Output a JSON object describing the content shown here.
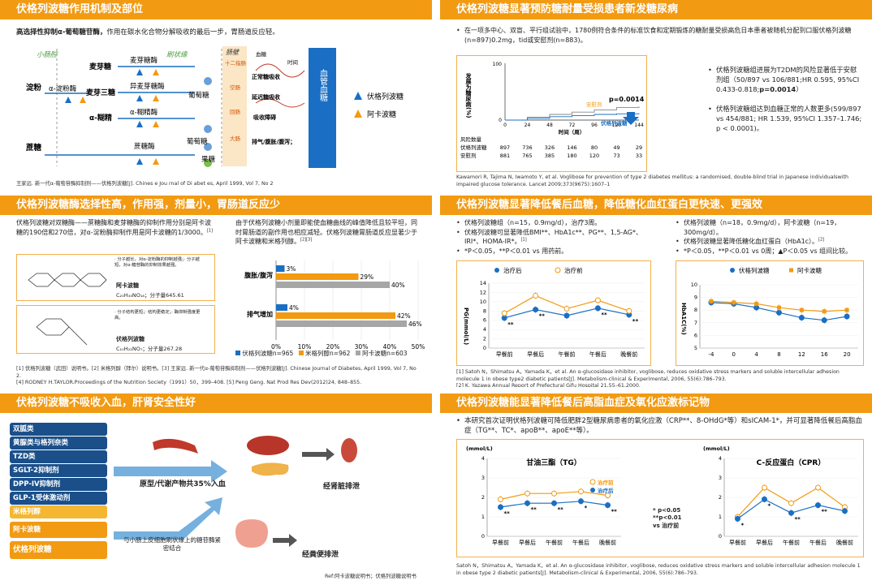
{
  "s1": {
    "title": "伏格列波糖作用机制及部位",
    "intro_bold": "高选择性抑制α-葡萄糖苷酶，",
    "intro": "作用在碳水化合物分解吸收的最后一步，胃肠道反应轻。",
    "col_small": "小肠腔",
    "col_brush": "刷状缘",
    "col_cell": "肠壁",
    "starch": "淀粉",
    "sucrose": "蔗糖",
    "amylase": "α-淀粉酶",
    "maltose": "麦芽糖",
    "maltotriose": "麦芽三糖",
    "dextrin": "α-糊精",
    "e_maltase": "麦芽糖酶",
    "e_isomaltase": "异麦芽糖酶",
    "e_dextrinase": "α-糊精酶",
    "e_sucrase": "蔗糖酶",
    "glucose": "葡萄糖",
    "glucose2": "葡萄糖",
    "fructose": "果糖",
    "g_duo": "十二指肠",
    "g_jej": "空肠",
    "g_ile": "回肠",
    "g_col": "大肠",
    "blood_lbl": "血糖",
    "time_lbl": "时间",
    "abs_normal": "正常糖吸收",
    "abs_delay": "延迟糖吸收",
    "abs_block": "吸收障碍",
    "excrete": "排气/腹胀/腹泻；",
    "vessel": "血管血糖",
    "leg_vog": "伏格列波糖",
    "leg_aca": "阿卡波糖",
    "ref": "王家远. 新一代α-葡萄苷酶抑制剂——伏格列波糖[J]. Chines e Jou rnal of Di abet es, April 1999, Vol 7, No 2"
  },
  "s2": {
    "title": "伏格列波糖显著预防糖耐量受损患者新发糖尿病",
    "bullet": "在一项多中心、双盲、平行组试验中，1780例符合条件的标准饮食和定期锻炼的糖耐量受损高危日本患者被随机分配到口服伏格列波糖(n=897)0.2mg，tid或安慰剂(n=883)。",
    "ylabel": "发展为糖尿病(%)",
    "xlabel": "时间（周）",
    "pval": "p=0.0014",
    "lbl_placebo": "安慰剂",
    "lbl_vog": "伏格列波糖",
    "risk_hdr": "风险数量",
    "risk_rows": [
      {
        "name": "伏格列波糖",
        "vals": [
          "897",
          "736",
          "326",
          "146",
          "80",
          "49",
          "29"
        ]
      },
      {
        "name": "安慰剂",
        "vals": [
          "881",
          "765",
          "385",
          "180",
          "120",
          "73",
          "33"
        ]
      }
    ],
    "b1": "伏格列波糖组进展为T2DM的风险显著低于安慰剂组（50/897 vs 106/881;HR 0.595, 95%CI 0.433-0.818;",
    "b1_bold": "p=0.0014",
    "b1_end": "）",
    "b2": "伏格列波糖组达到血糖正常的人数更多(599/897 vs 454/881; HR 1.539, 95%CI 1.357–1.746; p < 0.0001)。",
    "ref": "Kawamori R, Tajima N, Iwamoto Y, et al. Voglibose for prevention of type 2 diabetes mellitus: a randomised, double-blind trial in Japanese individualswith impaired glucose tolerance. Lancet 2009;373(9675):1607–1"
  },
  "s3": {
    "title": "伏格列波糖酶选择性高，作用强，剂量小，胃肠道反应少",
    "p1": "伏格列波糖对双糖酶——蔗糖酶和麦芽糖酶的抑制作用分别是阿卡波糖的190倍和270倍，对α-淀粉酶抑制作用是阿卡波糖的1/3000。",
    "p1_sup": "[1]",
    "p2": "由于伏格列波糖小剂量即能使血糖曲线的峰值降低且较平坦，同时胃肠道的副作用也相应减轻。伏格列波糖胃肠道反应显著少于阿卡波糖和米格列醇。",
    "p2_sup": "[2][3]",
    "aca_notes": "· 分子越长，对α-淀粉酶的抑制越强；· 分子越短，对α-糖苷酶的抑制效果越强。",
    "aca_name": "阿卡波糖",
    "aca_formula": "C₂₅H₄₃NO₁₈；分子量645.61",
    "vog_notes": "· 分子结构更短；· 结构更稳定；· 酶抑制强度更高。",
    "vog_name": "伏格列波糖",
    "vog_formula": "C₁₀H₂₁NO₇；分子量267.28",
    "ref": "[1] 伏格列波糖（武田）说明书。[2] 米格列醇（拜尔）说明书。[3] 王家远. 新一代α-葡萄苷酶抑制剂——伏格列波糖[J]. Chinese Journal of Diabetes, April 1999, Vol 7, No 2.\n[4] RODNEY H.TAYLOR.Proceedings of the Nutrition Society（1991）50，399–408.  [5] Peng Geng. Nat Prod Res Dev(2012)24, 848–855."
  },
  "s4": {
    "title": "伏格列波糖显著降低餐后血糖，降低糖化血红蛋白更快速、更强效",
    "l1": "伏格列波糖组（n=15，0.9mg/d），治疗3周。",
    "l2": "伏格列波糖可显著降低BMI**、HbA1c**、PG**、1,5-AG*、IRI*、HOMA-IR*。",
    "l2_sup": "[1]",
    "l3": "*P＜0.05，**P＜0.01 vs 用药前。",
    "r1": "伏格列波糖（n=18，0.9mg/d），阿卡波糖（n=19，300mg/d）。",
    "r2": "伏格列波糖显著降低糖化血红蛋白（HbA1c）。",
    "r2_sup": "[2]",
    "r3": "*P＜0.05，**P＜0.01 vs 0周；▲P＜0.05 vs 组间比较。",
    "ref": "[1] Satoh N，Shimatsu A，Yamada K，et al. An α-glucosidase inhibitor, voglibose, reduces oxidative stress markers and soluble intercellular adhesion molecule 1 in obese type2 diabetic patients[J]. Metabolism-clinical & Experimental, 2006, 55(6):786–793.\n[2] K. Yazawa Annual Report of Prefectural Gifu Hospital 21,55–61,2000."
  },
  "s5": {
    "title": "伏格列波糖不吸收入血，肝肾安全性好",
    "drugs": [
      "双胍类",
      "黄脲类与格列奈类",
      "TZD类",
      "SGLT-2抑制剂",
      "DPP-IV抑制剂",
      "GLP-1受体激动剂",
      "米格列醇",
      "阿卡波糖",
      "伏格列波糖"
    ],
    "proto": "原型/代谢产物共35%入血",
    "kidney": "经肾脏排泄",
    "mucosa": "与小肠上皮细胞刷状缘上的糖苷酶紧密结合",
    "feces": "经粪便排泄",
    "ref": "Ref:阿卡波糖说明书；伏格列波糖说明书"
  },
  "s6": {
    "title": "伏格列波糖能显著降低餐后高脂血症及氧化应激标记物",
    "bullet": "本研究首次证明伏格列波糖可降低肥胖2型糖尿病患者的氧化应激（CRP**、8-OHdG*等）和sICAM-1*，并可显著降低餐后高脂血症（TG**、TC*、apoB**、apoE**等）。",
    "sig": [
      "* p<0.05",
      "**p<0.01",
      "vs 治疗前"
    ],
    "ref": "Satoh N，Shimatsu A，Yamada K，et al. An α-glucosidase inhibitor, voglibose, reduces oxidative stress markers and soluble intercellular adhesion molecule 1 in obese type 2 diabetic patients[J]. Metabolism-clinical & Experimental, 2006, 55(6):786–793."
  },
  "colors": {
    "orange": "#f29a12",
    "blue": "#1a6fc4",
    "gray": "#a6a6a6",
    "green": "#4a9a3a"
  },
  "chart_data": [
    {
      "type": "line",
      "title": "",
      "xlabel": "时间（周）",
      "ylabel": "发展为糖尿病(%)",
      "x": [
        0,
        24,
        48,
        72,
        96,
        120,
        144
      ],
      "xlim": [
        0,
        144
      ],
      "ylim": [
        0,
        100
      ],
      "series": [
        {
          "name": "安慰剂",
          "values": [
            0,
            5,
            10,
            14,
            18,
            22,
            24
          ]
        },
        {
          "name": "伏格列波糖",
          "values": [
            0,
            3,
            6,
            8,
            10,
            11,
            12
          ]
        }
      ]
    },
    {
      "type": "bar",
      "orientation": "horizontal",
      "categories": [
        "腹胀/腹泻",
        "排气增加"
      ],
      "xlim": [
        0,
        50
      ],
      "xticks": [
        "0%",
        "10%",
        "20%",
        "30%",
        "40%",
        "50%"
      ],
      "series": [
        {
          "name": "伏格列波糖n=965",
          "values": [
            3,
            4
          ],
          "labels": [
            "3%",
            "4%"
          ]
        },
        {
          "name": "米格列醇n=962",
          "values": [
            29,
            42
          ],
          "labels": [
            "29%",
            "42%"
          ]
        },
        {
          "name": "阿卡波糖n=603",
          "values": [
            40,
            46
          ],
          "labels": [
            "40%",
            "46%"
          ]
        }
      ]
    },
    {
      "type": "line",
      "ylabel": "PG(mmol/L)",
      "ylim": [
        0,
        14
      ],
      "categories": [
        "早餐前",
        "早餐后",
        "午餐前",
        "午餐后",
        "晚餐前"
      ],
      "series": [
        {
          "name": "治疗后",
          "values": [
            6.5,
            8.3,
            7.0,
            8.6,
            7.2
          ],
          "marks": [
            "**",
            "**",
            "",
            "**",
            "**"
          ]
        },
        {
          "name": "治疗前",
          "values": [
            7.5,
            11.3,
            8.5,
            10.3,
            8.0
          ]
        }
      ]
    },
    {
      "type": "line",
      "ylabel": "HbA1C(%)",
      "ylim": [
        5,
        10
      ],
      "x": [
        -4,
        0,
        4,
        8,
        12,
        16,
        20
      ],
      "series": [
        {
          "name": "伏格列波糖",
          "values": [
            8.6,
            8.5,
            8.2,
            7.8,
            7.4,
            7.2,
            7.5
          ]
        },
        {
          "name": "阿卡波糖",
          "values": [
            8.7,
            8.6,
            8.5,
            8.2,
            8.0,
            7.9,
            8.0
          ]
        }
      ]
    },
    {
      "type": "line",
      "title": "甘油三酯（TG）",
      "ylabel": "(mmol/L)",
      "ylim": [
        0,
        4
      ],
      "categories": [
        "早餐前",
        "早餐后",
        "午餐前",
        "午餐后",
        "晚餐前"
      ],
      "series": [
        {
          "name": "治疗前",
          "values": [
            1.9,
            2.2,
            2.2,
            2.3,
            2.1
          ]
        },
        {
          "name": "治疗后",
          "values": [
            1.5,
            1.7,
            1.7,
            1.8,
            1.6
          ],
          "marks": [
            "**",
            "**",
            "**",
            "*",
            "**"
          ]
        }
      ]
    },
    {
      "type": "line",
      "title": "C-反应蛋白（CPR）",
      "ylabel": "(mmol/L)",
      "ylim": [
        0,
        4
      ],
      "categories": [
        "早餐前",
        "早餐后",
        "午餐前",
        "午餐后",
        "晚餐前"
      ],
      "series": [
        {
          "name": "治疗前",
          "values": [
            1.0,
            2.5,
            1.7,
            2.5,
            1.5
          ]
        },
        {
          "name": "治疗后",
          "values": [
            0.9,
            1.9,
            1.2,
            1.6,
            1.3
          ],
          "marks": [
            "*",
            "*",
            "**",
            "**",
            ""
          ]
        }
      ]
    }
  ]
}
